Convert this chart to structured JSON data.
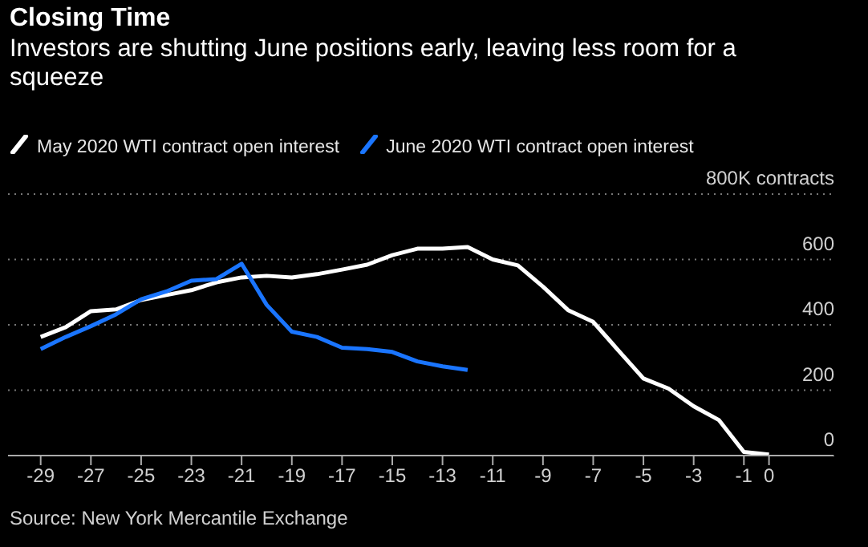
{
  "chart_data": {
    "type": "line",
    "title": "Closing Time",
    "subtitle": "Investors are shutting June positions early, leaving less room for a squeeze",
    "xlim": [
      -30.3,
      2.6
    ],
    "xticks": [
      -29,
      -27,
      -25,
      -23,
      -21,
      -19,
      -17,
      -15,
      -13,
      -11,
      -9,
      -7,
      -5,
      -3,
      -1,
      0
    ],
    "ylim": [
      0,
      800
    ],
    "yticks": [
      0,
      200,
      400,
      600,
      {
        "value": 800,
        "label": "800K contracts"
      }
    ],
    "grid": "y",
    "legend": "top left",
    "marker": "none",
    "line_style": "solid",
    "series": [
      {
        "name": "May 2020 WTI contract open interest",
        "color": "#ffffff",
        "x": [
          -29,
          -28,
          -27,
          -26,
          -25,
          -24,
          -23,
          -22,
          -21,
          -20,
          -19,
          -18,
          -17,
          -16,
          -15,
          -14,
          -13,
          -12,
          -11,
          -10,
          -9,
          -8,
          -7,
          -6,
          -5,
          -4,
          -3,
          -2,
          -1,
          0
        ],
        "values": [
          363,
          393,
          442,
          447,
          476,
          491,
          506,
          530,
          545,
          550,
          545,
          555,
          569,
          584,
          613,
          633,
          633,
          638,
          600,
          582,
          517,
          445,
          409,
          322,
          236,
          205,
          151,
          109,
          11,
          3
        ]
      },
      {
        "name": "June 2020 WTI contract open interest",
        "color": "#1a75ff",
        "x": [
          -29,
          -28,
          -27,
          -26,
          -25,
          -24,
          -23,
          -22,
          -21,
          -20,
          -19,
          -18,
          -17,
          -16,
          -15,
          -14,
          -13,
          -12
        ],
        "values": [
          326,
          363,
          396,
          432,
          478,
          502,
          535,
          540,
          587,
          461,
          379,
          363,
          330,
          326,
          317,
          288,
          273,
          262
        ]
      }
    ],
    "annotations": [
      "Source: New York Mercantile Exchange"
    ]
  }
}
